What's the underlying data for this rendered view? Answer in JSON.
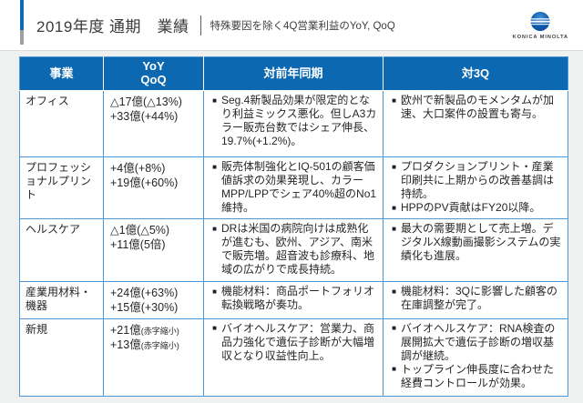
{
  "header": {
    "title": "2019年度 通期　業績",
    "subtitle": "特殊要因を除く4Q営業利益のYoY, QoQ",
    "logo": {
      "brand": "KONICA MINOLTA"
    }
  },
  "colors": {
    "header_blue": "#0d68b2",
    "table_border_blue": "#4e96d4",
    "accent_blue": "#0d6bb7",
    "accent_gray": "#9aa0a4",
    "body_background": "#eff1f0",
    "text_dark": "#262626"
  },
  "table": {
    "columns": [
      "事業",
      "YoY\nQoQ",
      "対前年同期",
      "対3Q"
    ],
    "rows": [
      {
        "business": "オフィス",
        "yoy": {
          "value": "△17億(△13%)",
          "note": ""
        },
        "qoq": {
          "value": "+33億(+44%)",
          "note": ""
        },
        "vs_prev_year": [
          "Seg.4新製品効果が限定的となり利益ミックス悪化。但しA3カラー販売台数ではシェア伸長、19.7%(+1.2%)。"
        ],
        "vs_3q": [
          "欧州で新製品のモメンタムが加速、大口案件の設置も寄与。"
        ]
      },
      {
        "business": "プロフェッショナルプリント",
        "yoy": {
          "value": "+4億(+8%)",
          "note": ""
        },
        "qoq": {
          "value": "+19億(+60%)",
          "note": ""
        },
        "vs_prev_year": [
          "販売体制強化とIQ-501の顧客価値訴求の効果発現し、カラーMPP/LPPでシェア40%超のNo1維持。"
        ],
        "vs_3q": [
          "プロダクションプリント・産業印刷共に上期からの改善基調は持続。",
          "HPPのPV貢献はFY20以降。"
        ]
      },
      {
        "business": "ヘルスケア",
        "yoy": {
          "value": "△1億(△5%)",
          "note": ""
        },
        "qoq": {
          "value": "+11億(5倍)",
          "note": ""
        },
        "vs_prev_year": [
          "DRは米国の病院向けは成熟化が進むも、欧州、アジア、南米で販売増。超音波も診療科、地域の広がりで成長持続。"
        ],
        "vs_3q": [
          "最大の需要期として売上増。デジタルX線動画撮影システムの実績化も進展。"
        ]
      },
      {
        "business": "産業用材料・機器",
        "yoy": {
          "value": "+24億(+63%)",
          "note": ""
        },
        "qoq": {
          "value": "+15億(+30%)",
          "note": ""
        },
        "vs_prev_year": [
          "機能材料：商品ポートフォリオ転換戦略が奏功。"
        ],
        "vs_3q": [
          "機能材料：3Qに影響した顧客の在庫調整が完了。"
        ]
      },
      {
        "business": "新規",
        "yoy": {
          "value": "+21億",
          "note": "(赤字縮小)"
        },
        "qoq": {
          "value": "+13億",
          "note": "(赤字縮小)"
        },
        "vs_prev_year": [
          "バイオヘルスケア：営業力、商品力強化で遺伝子診断が大幅増収となり収益性向上。"
        ],
        "vs_3q": [
          "バイオヘルスケア：RNA検査の展開拡大で遺伝子診断の増収基調が継続。",
          "トップライン伸長度に合わせた経費コントロールが効果。"
        ]
      }
    ]
  }
}
